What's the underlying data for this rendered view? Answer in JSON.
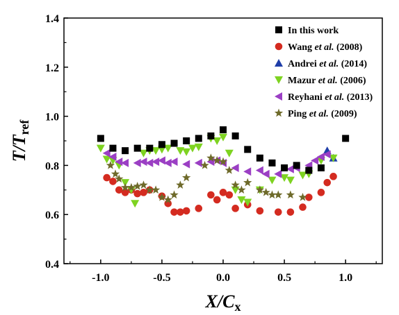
{
  "chart_data": {
    "type": "scatter",
    "xlabel": {
      "main": "X/C",
      "sub": "x"
    },
    "ylabel": {
      "main": "T/T",
      "sub": "ref"
    },
    "xlim": [
      -1.3,
      1.3
    ],
    "ylim": [
      0.4,
      1.4
    ],
    "xticks": [
      -1.0,
      -0.5,
      0.0,
      0.5,
      1.0
    ],
    "xtick_labels": [
      "-1.0",
      "-0.5",
      "0.0",
      "0.5",
      "1.0"
    ],
    "yticks": [
      0.4,
      0.6,
      0.8,
      1.0,
      1.2,
      1.4
    ],
    "ytick_labels": [
      "0.4",
      "0.6",
      "0.8",
      "1.0",
      "1.2",
      "1.4"
    ],
    "legend_position": "top-right",
    "series": [
      {
        "legend": [
          {
            "text": "In this work"
          }
        ],
        "marker": "square",
        "color": "#000000",
        "points": [
          [
            -1.0,
            0.91
          ],
          [
            -0.9,
            0.87
          ],
          [
            -0.8,
            0.86
          ],
          [
            -0.7,
            0.87
          ],
          [
            -0.6,
            0.87
          ],
          [
            -0.5,
            0.885
          ],
          [
            -0.4,
            0.89
          ],
          [
            -0.3,
            0.9
          ],
          [
            -0.2,
            0.91
          ],
          [
            -0.1,
            0.92
          ],
          [
            0.0,
            0.945
          ],
          [
            0.1,
            0.92
          ],
          [
            0.2,
            0.865
          ],
          [
            0.3,
            0.83
          ],
          [
            0.4,
            0.81
          ],
          [
            0.5,
            0.79
          ],
          [
            0.6,
            0.8
          ],
          [
            0.7,
            0.78
          ],
          [
            0.8,
            0.79
          ],
          [
            1.0,
            0.91
          ]
        ]
      },
      {
        "legend": [
          {
            "text": "Wang "
          },
          {
            "text": "et al.",
            "italic": true
          },
          {
            "text": " (2008)"
          }
        ],
        "marker": "circle",
        "color": "#d42b20",
        "points": [
          [
            -0.95,
            0.75
          ],
          [
            -0.9,
            0.735
          ],
          [
            -0.85,
            0.7
          ],
          [
            -0.8,
            0.69
          ],
          [
            -0.75,
            0.7
          ],
          [
            -0.7,
            0.685
          ],
          [
            -0.65,
            0.69
          ],
          [
            -0.6,
            0.7
          ],
          [
            -0.5,
            0.675
          ],
          [
            -0.45,
            0.645
          ],
          [
            -0.4,
            0.61
          ],
          [
            -0.35,
            0.61
          ],
          [
            -0.3,
            0.615
          ],
          [
            -0.2,
            0.625
          ],
          [
            -0.1,
            0.68
          ],
          [
            -0.05,
            0.66
          ],
          [
            0.0,
            0.69
          ],
          [
            0.05,
            0.68
          ],
          [
            0.1,
            0.625
          ],
          [
            0.2,
            0.64
          ],
          [
            0.3,
            0.615
          ],
          [
            0.45,
            0.61
          ],
          [
            0.55,
            0.61
          ],
          [
            0.65,
            0.63
          ],
          [
            0.7,
            0.67
          ],
          [
            0.8,
            0.69
          ],
          [
            0.85,
            0.73
          ],
          [
            0.9,
            0.755
          ]
        ]
      },
      {
        "legend": [
          {
            "text": "Andrei "
          },
          {
            "text": "et al.",
            "italic": true
          },
          {
            "text": " (2014)"
          }
        ],
        "marker": "triangle-up",
        "color": "#1f3ea8",
        "points": [
          [
            0.85,
            0.86
          ],
          [
            0.9,
            0.83
          ]
        ]
      },
      {
        "legend": [
          {
            "text": "Mazur "
          },
          {
            "text": "et al.",
            "italic": true
          },
          {
            "text": " (2006)"
          }
        ],
        "marker": "triangle-down",
        "color": "#7ed321",
        "points": [
          [
            -1.0,
            0.87
          ],
          [
            -0.95,
            0.825
          ],
          [
            -0.9,
            0.82
          ],
          [
            -0.85,
            0.8
          ],
          [
            -0.8,
            0.73
          ],
          [
            -0.75,
            0.7
          ],
          [
            -0.72,
            0.645
          ],
          [
            -0.65,
            0.85
          ],
          [
            -0.6,
            0.86
          ],
          [
            -0.55,
            0.86
          ],
          [
            -0.5,
            0.865
          ],
          [
            -0.45,
            0.87
          ],
          [
            -0.35,
            0.86
          ],
          [
            -0.3,
            0.855
          ],
          [
            -0.25,
            0.87
          ],
          [
            -0.2,
            0.875
          ],
          [
            -0.1,
            0.91
          ],
          [
            -0.05,
            0.9
          ],
          [
            0.0,
            0.915
          ],
          [
            0.05,
            0.85
          ],
          [
            0.1,
            0.7
          ],
          [
            0.15,
            0.66
          ],
          [
            0.2,
            0.65
          ],
          [
            0.3,
            0.7
          ],
          [
            0.4,
            0.74
          ],
          [
            0.5,
            0.75
          ],
          [
            0.55,
            0.74
          ],
          [
            0.65,
            0.76
          ],
          [
            0.7,
            0.765
          ],
          [
            0.8,
            0.82
          ],
          [
            0.9,
            0.83
          ]
        ]
      },
      {
        "legend": [
          {
            "text": "Reyhani "
          },
          {
            "text": "et al.",
            "italic": true
          },
          {
            "text": " (2013)"
          }
        ],
        "marker": "triangle-left",
        "color": "#9b3fc4",
        "points": [
          [
            -0.95,
            0.85
          ],
          [
            -0.9,
            0.835
          ],
          [
            -0.85,
            0.815
          ],
          [
            -0.8,
            0.81
          ],
          [
            -0.7,
            0.81
          ],
          [
            -0.65,
            0.815
          ],
          [
            -0.6,
            0.81
          ],
          [
            -0.55,
            0.815
          ],
          [
            -0.5,
            0.82
          ],
          [
            -0.45,
            0.81
          ],
          [
            -0.4,
            0.815
          ],
          [
            -0.3,
            0.805
          ],
          [
            -0.2,
            0.81
          ],
          [
            -0.1,
            0.815
          ],
          [
            -0.05,
            0.82
          ],
          [
            0.0,
            0.81
          ],
          [
            0.1,
            0.79
          ],
          [
            0.2,
            0.775
          ],
          [
            0.3,
            0.78
          ],
          [
            0.35,
            0.765
          ],
          [
            0.45,
            0.765
          ],
          [
            0.55,
            0.785
          ],
          [
            0.6,
            0.79
          ],
          [
            0.7,
            0.8
          ],
          [
            0.75,
            0.82
          ],
          [
            0.8,
            0.835
          ],
          [
            0.85,
            0.845
          ]
        ]
      },
      {
        "legend": [
          {
            "text": "Ping "
          },
          {
            "text": "et al.",
            "italic": true
          },
          {
            "text": " (2009)"
          }
        ],
        "marker": "star",
        "color": "#6e6a2a",
        "points": [
          [
            -0.92,
            0.8
          ],
          [
            -0.88,
            0.765
          ],
          [
            -0.85,
            0.745
          ],
          [
            -0.8,
            0.71
          ],
          [
            -0.75,
            0.71
          ],
          [
            -0.7,
            0.715
          ],
          [
            -0.65,
            0.72
          ],
          [
            -0.6,
            0.7
          ],
          [
            -0.55,
            0.7
          ],
          [
            -0.5,
            0.67
          ],
          [
            -0.45,
            0.66
          ],
          [
            -0.4,
            0.68
          ],
          [
            -0.35,
            0.72
          ],
          [
            -0.3,
            0.75
          ],
          [
            -0.15,
            0.8
          ],
          [
            -0.1,
            0.83
          ],
          [
            -0.05,
            0.82
          ],
          [
            0.0,
            0.815
          ],
          [
            0.05,
            0.78
          ],
          [
            0.1,
            0.72
          ],
          [
            0.15,
            0.7
          ],
          [
            0.2,
            0.73
          ],
          [
            0.3,
            0.7
          ],
          [
            0.35,
            0.69
          ],
          [
            0.4,
            0.68
          ],
          [
            0.45,
            0.68
          ],
          [
            0.55,
            0.68
          ],
          [
            0.65,
            0.67
          ]
        ]
      }
    ]
  }
}
